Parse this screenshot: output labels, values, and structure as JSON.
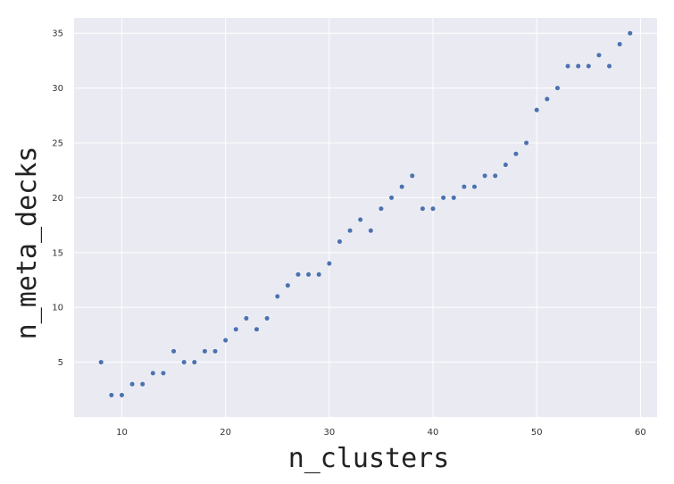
{
  "chart_data": {
    "type": "scatter",
    "xlabel": "n_clusters",
    "ylabel": "n_meta_decks",
    "xlim": [
      5.4,
      61.6
    ],
    "ylim": [
      0,
      36.4
    ],
    "xticks": [
      10,
      20,
      30,
      40,
      50,
      60
    ],
    "yticks": [
      5,
      10,
      15,
      20,
      25,
      30,
      35
    ],
    "grid": true,
    "colors": {
      "background": "#eaeaf2",
      "grid": "#ffffff",
      "point": "#4c72b0"
    },
    "points": [
      [
        8,
        5
      ],
      [
        9,
        2
      ],
      [
        10,
        2
      ],
      [
        11,
        3
      ],
      [
        12,
        3
      ],
      [
        13,
        4
      ],
      [
        14,
        4
      ],
      [
        15,
        6
      ],
      [
        16,
        5
      ],
      [
        17,
        5
      ],
      [
        18,
        6
      ],
      [
        19,
        6
      ],
      [
        20,
        7
      ],
      [
        21,
        8
      ],
      [
        22,
        9
      ],
      [
        23,
        8
      ],
      [
        24,
        9
      ],
      [
        25,
        11
      ],
      [
        26,
        12
      ],
      [
        27,
        13
      ],
      [
        28,
        13
      ],
      [
        29,
        13
      ],
      [
        30,
        14
      ],
      [
        31,
        16
      ],
      [
        32,
        17
      ],
      [
        33,
        18
      ],
      [
        34,
        17
      ],
      [
        35,
        19
      ],
      [
        36,
        20
      ],
      [
        37,
        21
      ],
      [
        38,
        22
      ],
      [
        39,
        19
      ],
      [
        40,
        19
      ],
      [
        41,
        20
      ],
      [
        42,
        20
      ],
      [
        43,
        21
      ],
      [
        44,
        21
      ],
      [
        45,
        22
      ],
      [
        46,
        22
      ],
      [
        47,
        23
      ],
      [
        48,
        24
      ],
      [
        49,
        25
      ],
      [
        50,
        28
      ],
      [
        51,
        29
      ],
      [
        52,
        30
      ],
      [
        53,
        32
      ],
      [
        54,
        32
      ],
      [
        55,
        32
      ],
      [
        56,
        33
      ],
      [
        57,
        32
      ],
      [
        58,
        34
      ],
      [
        59,
        35
      ]
    ]
  }
}
